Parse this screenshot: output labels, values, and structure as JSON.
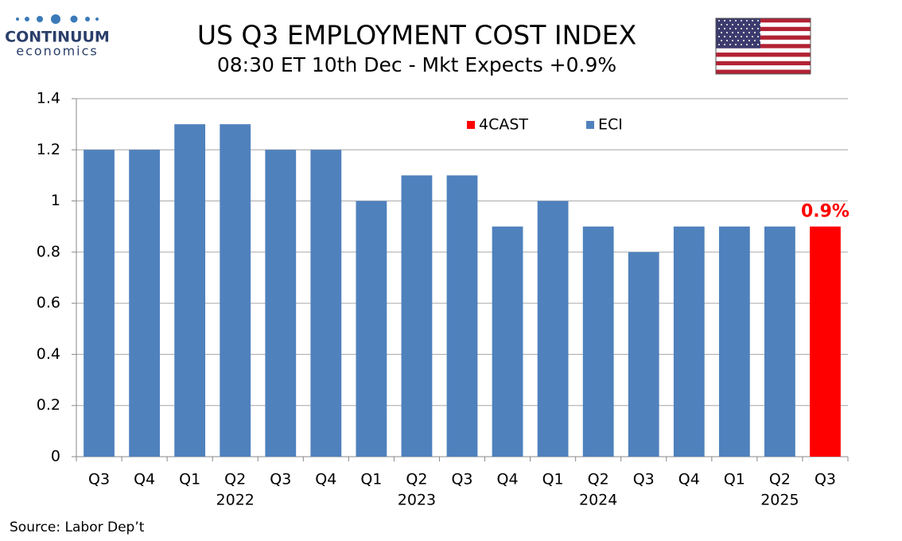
{
  "logo": {
    "name": "CONTINUUM",
    "tagline": "economics"
  },
  "chart_data": {
    "type": "bar",
    "title": "US Q3 EMPLOYMENT COST INDEX",
    "subtitle": "08:30 ET 10th Dec - Mkt Expects +0.9%",
    "categories": [
      "Q3",
      "Q4",
      "Q1",
      "Q2",
      "Q3",
      "Q4",
      "Q1",
      "Q2",
      "Q3",
      "Q4",
      "Q1",
      "Q2",
      "Q3",
      "Q4",
      "Q1",
      "Q2",
      "Q3"
    ],
    "years": [
      null,
      null,
      null,
      "2022",
      null,
      null,
      null,
      "2023",
      null,
      null,
      null,
      "2024",
      null,
      null,
      null,
      "2025",
      null
    ],
    "series": [
      {
        "name": "4CAST",
        "color": "#ff0000",
        "values": [
          null,
          null,
          null,
          null,
          null,
          null,
          null,
          null,
          null,
          null,
          null,
          null,
          null,
          null,
          null,
          null,
          0.9
        ],
        "value_labels": [
          null,
          null,
          null,
          null,
          null,
          null,
          null,
          null,
          null,
          null,
          null,
          null,
          null,
          null,
          null,
          null,
          "0.9%"
        ]
      },
      {
        "name": "ECI",
        "color": "#4f81bd",
        "values": [
          1.2,
          1.2,
          1.3,
          1.3,
          1.2,
          1.2,
          1.0,
          1.1,
          1.1,
          0.9,
          1.0,
          0.9,
          0.8,
          0.9,
          0.9,
          0.9,
          null
        ]
      }
    ],
    "ylim": [
      0,
      1.4
    ],
    "yticks": [
      0,
      0.2,
      0.4,
      0.6,
      0.8,
      1,
      1.2,
      1.4
    ],
    "grid": true,
    "source": "Source: Labor Dep’t"
  }
}
